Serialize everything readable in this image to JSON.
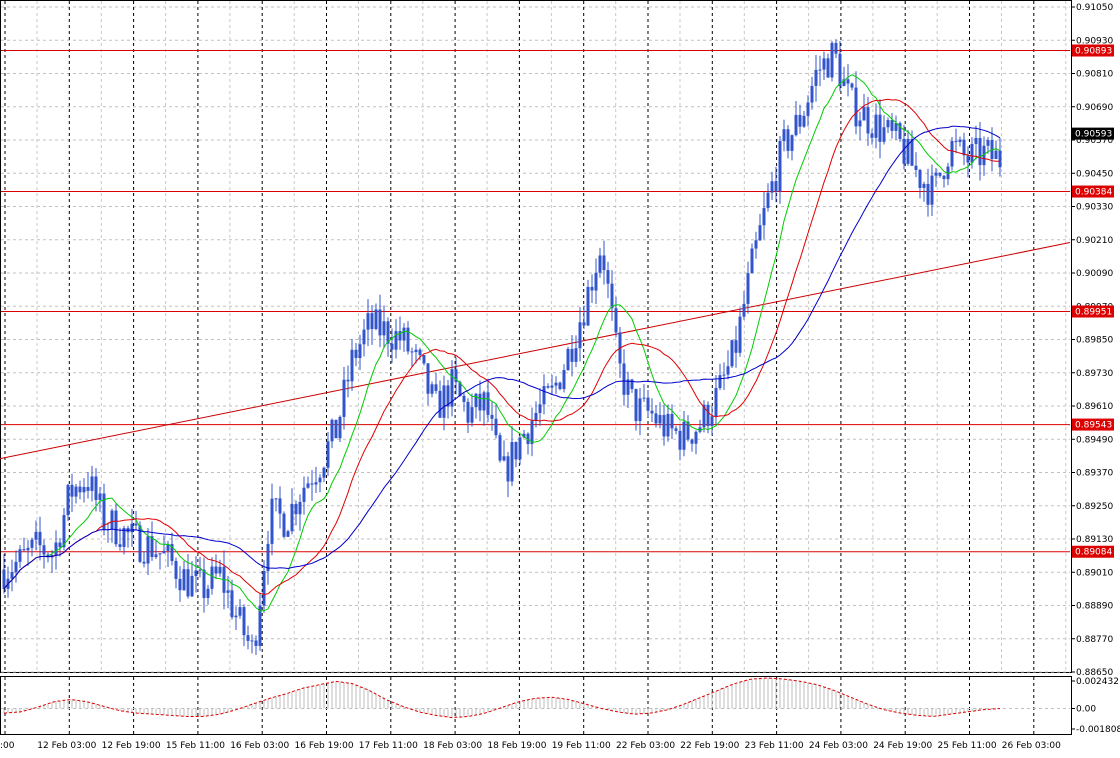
{
  "chart_data": {
    "type": "candlestick",
    "price_axis": {
      "min": 0.8865,
      "max": 0.9105,
      "ticks": [
        "0.91050",
        "0.90930",
        "0.90810",
        "0.90690",
        "0.90570",
        "0.90450",
        "0.90330",
        "0.90210",
        "0.90090",
        "0.89970",
        "0.89850",
        "0.89730",
        "0.89610",
        "0.89490",
        "0.89370",
        "0.89250",
        "0.89130",
        "0.89010",
        "0.88890",
        "0.88770",
        "0.88650"
      ]
    },
    "time_axis": {
      "labels": [
        ":00",
        "12 Feb 03:00",
        "12 Feb 19:00",
        "15 Feb 11:00",
        "16 Feb 03:00",
        "16 Feb 19:00",
        "17 Feb 11:00",
        "18 Feb 03:00",
        "18 Feb 19:00",
        "19 Feb 11:00",
        "22 Feb 03:00",
        "22 Feb 19:00",
        "23 Feb 11:00",
        "24 Feb 03:00",
        "24 Feb 19:00",
        "25 Feb 11:00",
        "26 Feb 03:00"
      ]
    },
    "current_price": {
      "label": "0.90593",
      "value": 0.90593
    },
    "horizontal_levels": [
      {
        "label": "0.90893",
        "value": 0.90893
      },
      {
        "label": "0.90384",
        "value": 0.90384
      },
      {
        "label": "0.89951",
        "value": 0.89951
      },
      {
        "label": "0.89543",
        "value": 0.89543
      },
      {
        "label": "0.89084",
        "value": 0.89084
      }
    ],
    "trendline": {
      "start_price": 0.8942,
      "end_price": 0.902
    },
    "price_path": [
      0.8902,
      0.8905,
      0.891,
      0.8908,
      0.893,
      0.8935,
      0.892,
      0.8916,
      0.8912,
      0.891,
      0.8905,
      0.8898,
      0.8895,
      0.89,
      0.8885,
      0.8872,
      0.8922,
      0.892,
      0.8932,
      0.894,
      0.8952,
      0.8978,
      0.899,
      0.8988,
      0.8985,
      0.8975,
      0.896,
      0.8968,
      0.8958,
      0.8962,
      0.8935,
      0.8948,
      0.8958,
      0.8965,
      0.898,
      0.8998,
      0.902,
      0.8975,
      0.896,
      0.8958,
      0.8952,
      0.895,
      0.8955,
      0.8965,
      0.898,
      0.901,
      0.9035,
      0.9055,
      0.9065,
      0.9082,
      0.9088,
      0.907,
      0.9065,
      0.906,
      0.9055,
      0.9045,
      0.9038,
      0.9055,
      0.905,
      0.9052,
      0.905
    ],
    "moving_averages": [
      {
        "name": "MA fast",
        "color": "#00cc00",
        "period": 3
      },
      {
        "name": "MA medium",
        "color": "#e00000",
        "period": 6
      },
      {
        "name": "MA slow",
        "color": "#0000cc",
        "period": 11
      }
    ],
    "candle_color": "#3355cc",
    "grid": true,
    "oscillator": {
      "ticks": [
        "0.002432",
        "0.00",
        "-0.001808"
      ],
      "min": -0.001808,
      "max": 0.002432,
      "values": [
        -0.0004,
        -0.0003,
        0.0001,
        0.0006,
        0.0008,
        0.0006,
        0.0002,
        -0.0002,
        -0.0004,
        -0.0005,
        -0.0006,
        -0.0007,
        -0.0007,
        -0.0005,
        -0.0001,
        0.0004,
        0.0009,
        0.0013,
        0.0018,
        0.0021,
        0.0024,
        0.0022,
        0.0016,
        0.0008,
        0.0002,
        -0.0003,
        -0.0006,
        -0.0008,
        -0.0007,
        -0.0004,
        0.0001,
        0.0006,
        0.0009,
        0.001,
        0.0008,
        0.0004,
        0.0,
        -0.0003,
        -0.0005,
        -0.0004,
        -0.0001,
        0.0004,
        0.001,
        0.0016,
        0.0022,
        0.0026,
        0.0027,
        0.0026,
        0.0024,
        0.0021,
        0.0016,
        0.001,
        0.0004,
        -0.0001,
        -0.0004,
        -0.0006,
        -0.0007,
        -0.0005,
        -0.0003,
        -0.0001,
        0.0
      ]
    }
  }
}
